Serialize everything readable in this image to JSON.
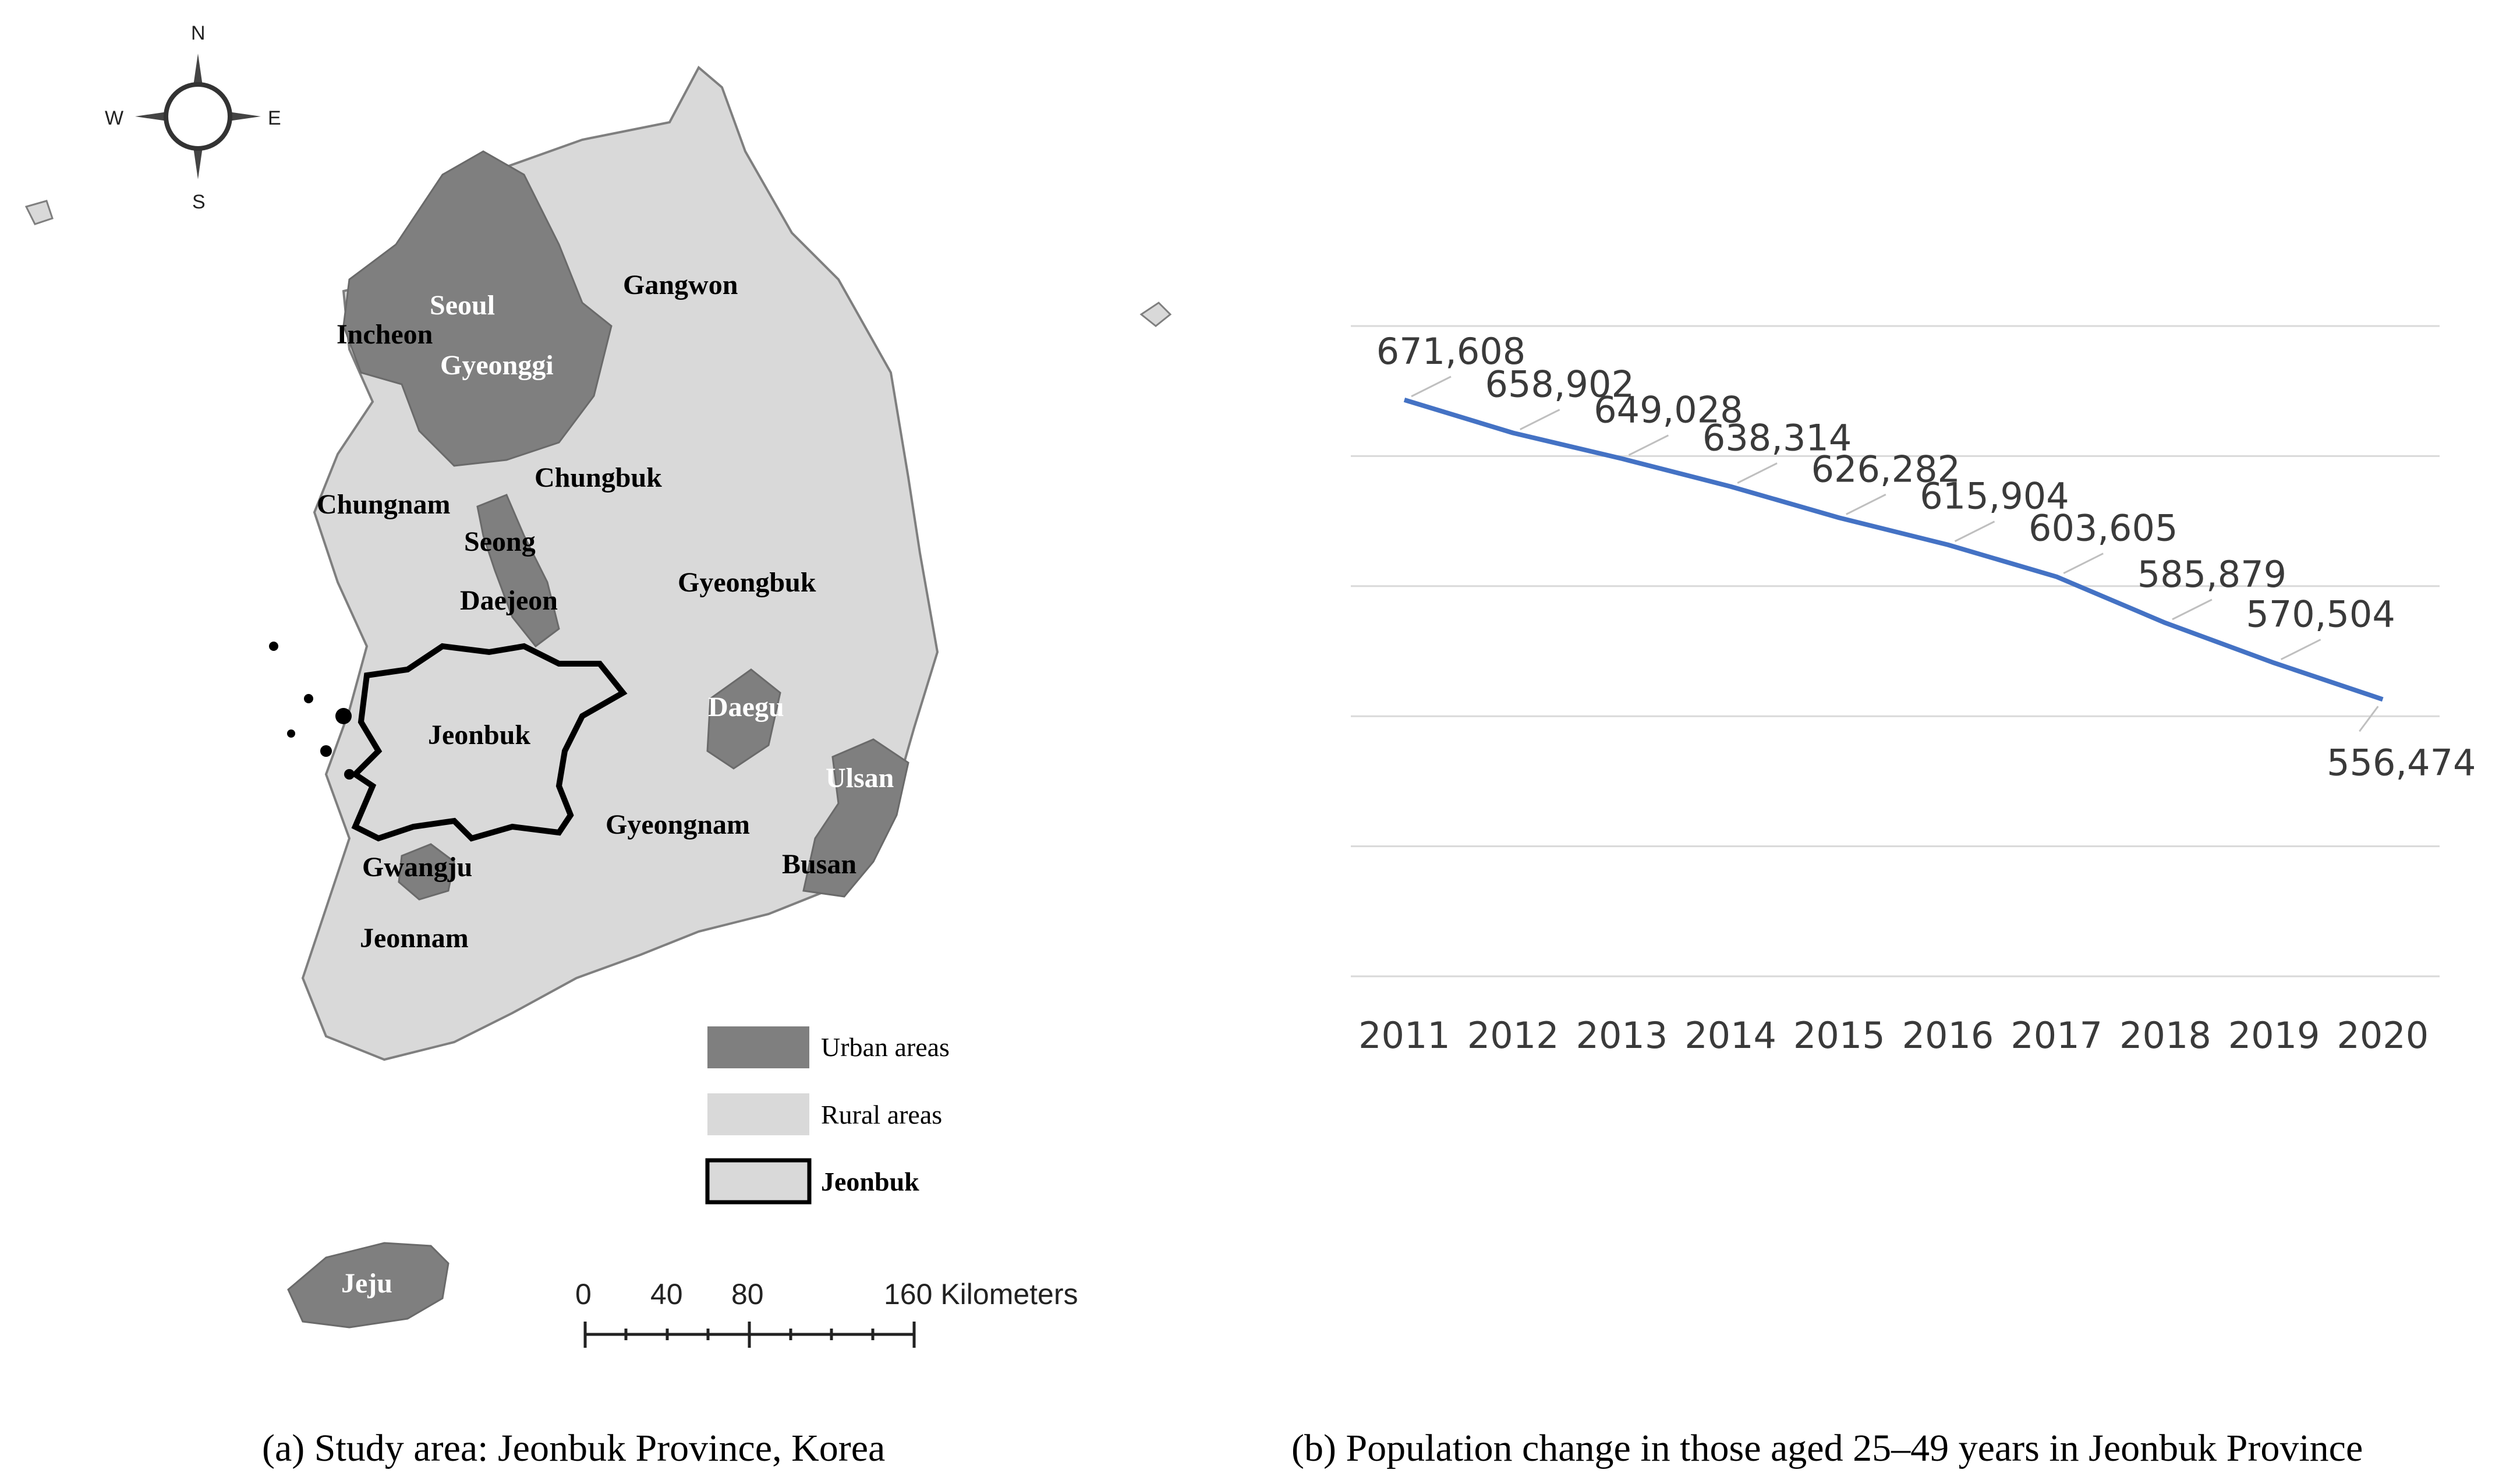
{
  "map": {
    "compass": {
      "n": "N",
      "s": "S",
      "e": "E",
      "w": "W"
    },
    "labels": {
      "seoul": "Seoul",
      "incheon": "Incheon",
      "gyeonggi": "Gyeonggi",
      "gangwon": "Gangwon",
      "chungbuk": "Chungbuk",
      "chungnam": "Chungnam",
      "seong": "Seong",
      "daejeon": "Daejeon",
      "gyeongbuk": "Gyeongbuk",
      "daegu": "Daegu",
      "jeonbuk": "Jeonbuk",
      "ulsan": "Ulsan",
      "gyeongnam": "Gyeongnam",
      "busan": "Busan",
      "gwangju": "Gwangju",
      "jeonnam": "Jeonnam",
      "jeju": "Jeju"
    },
    "legend": {
      "urban": "Urban areas",
      "rural": "Rural areas",
      "jeonbuk": "Jeonbuk"
    },
    "scale": {
      "t0": "0",
      "t1": "40",
      "t2": "80",
      "t3": "160 Kilometers"
    },
    "colors": {
      "urban": "#7f7f7f",
      "rural": "#d9d9d9",
      "border": "#000000"
    }
  },
  "chart_data": {
    "type": "line",
    "categories": [
      "2011",
      "2012",
      "2013",
      "2014",
      "2015",
      "2016",
      "2017",
      "2018",
      "2019",
      "2020"
    ],
    "values": [
      671608,
      658902,
      649028,
      638314,
      626282,
      615904,
      603605,
      585879,
      570504,
      556474
    ],
    "value_labels": [
      "671,608",
      "658,902",
      "649,028",
      "638,314",
      "626,282",
      "615,904",
      "603,605",
      "585,879",
      "570,504",
      "556,474"
    ],
    "ylim": [
      450000,
      700000
    ],
    "grid": true,
    "line_color": "#4472c4",
    "gridline_color": "#d9d9d9"
  },
  "captions": {
    "a": "(a) Study area: Jeonbuk Province, Korea",
    "b": "(b) Population change in those aged 25–49 years in Jeonbuk Province"
  }
}
